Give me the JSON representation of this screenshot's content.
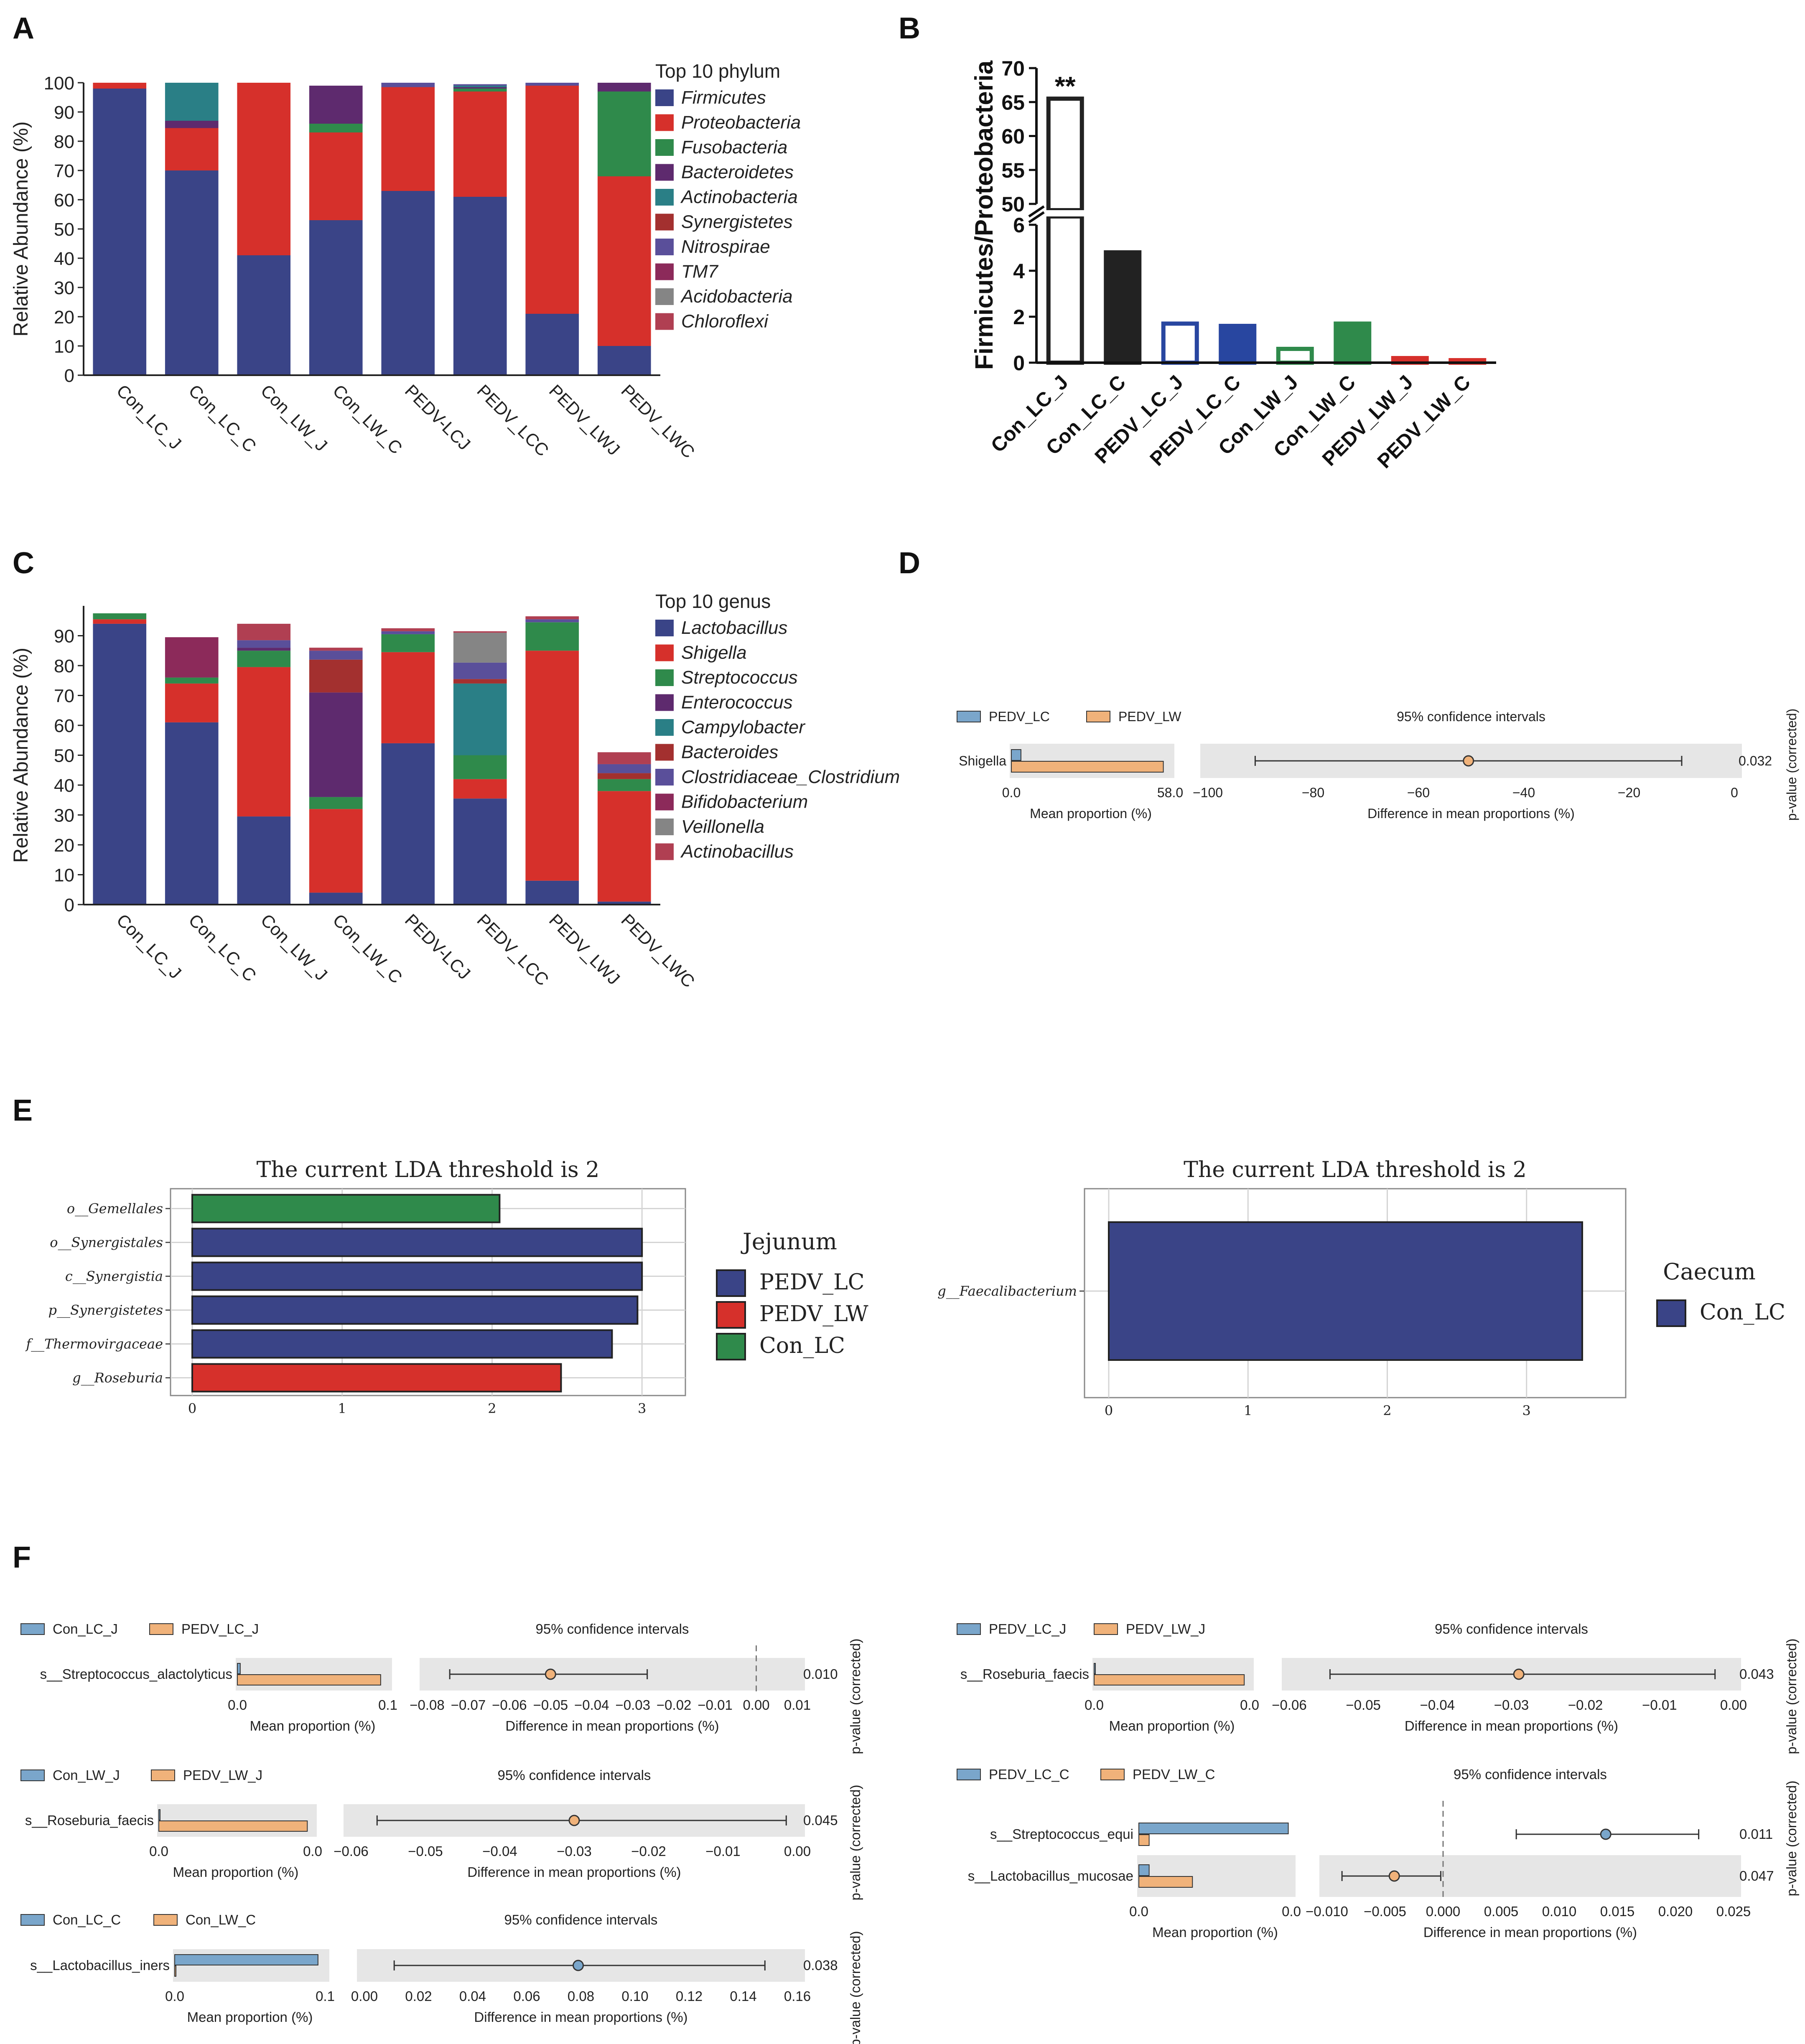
{
  "colors": {
    "navy": "#3a4487",
    "red": "#d6302b",
    "green": "#2f8a4b",
    "purple": "#5e2a6e",
    "teal": "#2a7f86",
    "darkred": "#a3302f",
    "slate": "#5a4f9a",
    "magenta": "#8c2a5a",
    "grey": "#858585",
    "rose": "#b03f52",
    "blue_pt": "#7aa6cb",
    "orange_pt": "#f0b27a"
  },
  "panels": {
    "A": "A",
    "B": "B",
    "C": "C",
    "D": "D",
    "E": "E",
    "F": "F"
  },
  "chart_data": [
    {
      "id": "A",
      "type": "bar",
      "stacked": true,
      "ylabel": "Relative Abundance (%)",
      "ylim": [
        0,
        100
      ],
      "yticks": [
        0,
        10,
        20,
        30,
        40,
        50,
        60,
        70,
        80,
        90,
        100
      ],
      "categories": [
        "Con_LC_J",
        "Con_LC_C",
        "Con_LW_J",
        "Con_LW_C",
        "PEDV-LCJ",
        "PEDV_LCC",
        "PEDV_LWJ",
        "PEDV_LWC"
      ],
      "legend_title": "Top 10 phylum",
      "series": [
        {
          "name": "Firmicutes",
          "color": "#3a4487",
          "values": [
            98,
            70,
            41,
            53,
            63,
            61,
            21,
            10
          ]
        },
        {
          "name": "Proteobacteria",
          "color": "#d6302b",
          "values": [
            2,
            14.5,
            59,
            30,
            35.5,
            36,
            78,
            58
          ]
        },
        {
          "name": "Fusobacteria",
          "color": "#2f8a4b",
          "values": [
            0,
            0,
            0,
            3,
            0,
            1,
            0,
            29
          ]
        },
        {
          "name": "Bacteroidetes",
          "color": "#5e2a6e",
          "values": [
            0,
            2.5,
            0,
            13,
            0,
            0.5,
            0,
            3
          ]
        },
        {
          "name": "Actinobacteria",
          "color": "#2a7f86",
          "values": [
            0,
            13,
            0,
            0,
            0,
            0.5,
            0,
            0
          ]
        },
        {
          "name": "Synergistetes",
          "color": "#a3302f",
          "values": [
            0,
            0,
            0,
            0,
            0,
            0,
            0,
            0
          ]
        },
        {
          "name": "Nitrospirae",
          "color": "#5a4f9a",
          "values": [
            0,
            0,
            0,
            0,
            1.5,
            0.5,
            1,
            0
          ]
        },
        {
          "name": "TM7",
          "color": "#8c2a5a",
          "values": [
            0,
            0,
            0,
            0,
            0,
            0,
            0,
            0
          ]
        },
        {
          "name": "Acidobacteria",
          "color": "#858585",
          "values": [
            0,
            0,
            0,
            0,
            0,
            0,
            0,
            0
          ]
        },
        {
          "name": "Chloroflexi",
          "color": "#b03f52",
          "values": [
            0,
            0,
            0,
            0,
            0,
            0,
            0,
            0
          ]
        }
      ]
    },
    {
      "id": "B",
      "type": "bar",
      "broken_axis": true,
      "ylabel": "Firmicutes/Proteobacteria",
      "yticks_lower": [
        0,
        2,
        4,
        6
      ],
      "yticks_upper": [
        50,
        55,
        60,
        65,
        70
      ],
      "categories": [
        "Con_LC_J",
        "Con_LC_C",
        "PEDV_LC_J",
        "PEDV_LC_C",
        "Con_LW_J",
        "Con_LW_C",
        "PEDV_LW_J",
        "PEDV_LW_C"
      ],
      "values": [
        65.5,
        4.8,
        1.7,
        1.6,
        0.6,
        1.7,
        0.2,
        0.1
      ],
      "fill": [
        "none",
        "#222222",
        "none",
        "#2846a0",
        "none",
        "#2f8a4b",
        "#d6302b",
        "#d6302b"
      ],
      "stroke": [
        "#222222",
        "#222222",
        "#2846a0",
        "#2846a0",
        "#2f8a4b",
        "#2f8a4b",
        "#d6302b",
        "#d6302b"
      ],
      "annotation": "**"
    },
    {
      "id": "C",
      "type": "bar",
      "stacked": true,
      "ylabel": "Relative Abundance (%)",
      "ylim": [
        0,
        100
      ],
      "yticks": [
        0,
        10,
        20,
        30,
        40,
        50,
        60,
        70,
        80,
        90
      ],
      "categories": [
        "Con_LC_J",
        "Con_LC_C",
        "Con_LW_J",
        "Con_LW_C",
        "PEDV-LCJ",
        "PEDV_LCC",
        "PEDV_LWJ",
        "PEDV_LWC"
      ],
      "legend_title": "Top 10 genus",
      "series": [
        {
          "name": "Lactobacillus",
          "color": "#3a4487",
          "values": [
            94,
            61,
            29.5,
            4,
            54,
            35.5,
            8,
            1
          ]
        },
        {
          "name": "Shigella",
          "color": "#d6302b",
          "values": [
            1.5,
            13,
            50,
            28,
            30.5,
            6.5,
            77,
            37
          ]
        },
        {
          "name": "Streptococcus",
          "color": "#2f8a4b",
          "values": [
            2,
            2,
            5.5,
            4,
            6,
            8,
            9.5,
            4
          ]
        },
        {
          "name": "Enterococcus",
          "color": "#5e2a6e",
          "values": [
            0,
            0,
            1,
            35,
            0,
            0,
            0,
            0
          ]
        },
        {
          "name": "Campylobacter",
          "color": "#2a7f86",
          "values": [
            0,
            0,
            0,
            0,
            0,
            24,
            0,
            0
          ]
        },
        {
          "name": "Bacteroides",
          "color": "#a3302f",
          "values": [
            0,
            0,
            0,
            11,
            0,
            1.5,
            0,
            2
          ]
        },
        {
          "name": "Clostridiaceae_Clostridium",
          "color": "#5a4f9a",
          "values": [
            0,
            0,
            2.5,
            3,
            1,
            5.5,
            1,
            3
          ]
        },
        {
          "name": "Bifidobacterium",
          "color": "#8c2a5a",
          "values": [
            0,
            13.5,
            0,
            0,
            0,
            0,
            0,
            0
          ]
        },
        {
          "name": "Veillonella",
          "color": "#858585",
          "values": [
            0,
            0,
            0,
            0,
            0,
            10,
            0,
            0
          ]
        },
        {
          "name": "Actinobacillus",
          "color": "#b03f52",
          "values": [
            0,
            0,
            5.5,
            1,
            1,
            0.5,
            1,
            4
          ]
        }
      ]
    },
    {
      "id": "D",
      "type": "scatter",
      "subtype": "extended_error_bar",
      "groups": [
        "PEDV_LC",
        "PEDV_LW"
      ],
      "ci_title": "95% confidence intervals",
      "mean_xticks": [
        "0.0",
        "58.0"
      ],
      "mean_xlabel": "Mean proportion (%)",
      "diff_xticks": [
        "−100",
        "−80",
        "−60",
        "−40",
        "−20",
        "0"
      ],
      "diff_xlabel": "Difference in mean proportions (%)",
      "pvalue_label": "p-value (corrected)",
      "rows": [
        {
          "name": "Shigella",
          "mean_a": 3.5,
          "mean_b": 55.5,
          "diff": -50.5,
          "ci": [
            -91,
            -10
          ],
          "p": "0.032"
        }
      ],
      "diff_range": [
        -100,
        0
      ],
      "mean_max": 58
    },
    {
      "id": "E1",
      "type": "bar",
      "orientation": "horizontal",
      "title": "The current LDA threshold is 2",
      "legend_title": "Jejunum",
      "legend": [
        {
          "name": "PEDV_LC",
          "color": "#3a4487"
        },
        {
          "name": "PEDV_LW",
          "color": "#d6302b"
        },
        {
          "name": "Con_LC",
          "color": "#2f8a4b"
        }
      ],
      "categories": [
        "o__Gemellales",
        "o__Synergistales",
        "c__Synergistia",
        "p__Synergistetes",
        "f__Thermovirgaceae",
        "g__Roseburia"
      ],
      "values": [
        2.05,
        3.0,
        3.0,
        2.97,
        2.8,
        2.46
      ],
      "colors": [
        "#2f8a4b",
        "#3a4487",
        "#3a4487",
        "#3a4487",
        "#3a4487",
        "#d6302b"
      ],
      "xticks": [
        "0",
        "1",
        "2",
        "3"
      ],
      "xlim": [
        0,
        3.15
      ]
    },
    {
      "id": "E2",
      "type": "bar",
      "orientation": "horizontal",
      "title": "The current LDA threshold is 2",
      "legend_title": "Caecum",
      "legend": [
        {
          "name": "Con_LC",
          "color": "#3a4487"
        }
      ],
      "categories": [
        "g__Faecalibacterium"
      ],
      "values": [
        3.4
      ],
      "colors": [
        "#3a4487"
      ],
      "xticks": [
        "0",
        "1",
        "2",
        "3"
      ],
      "xlim": [
        0,
        3.55
      ]
    },
    {
      "id": "F1",
      "type": "scatter",
      "subtype": "extended_error_bar",
      "groups": [
        "Con_LC_J",
        "PEDV_LC_J"
      ],
      "ci_title": "95% confidence intervals",
      "mean_xticks": [
        "0.0",
        "0.1"
      ],
      "mean_xlabel": "Mean proportion (%)",
      "diff_xticks": [
        "−0.08",
        "−0.07",
        "−0.06",
        "−0.05",
        "−0.04",
        "−0.03",
        "−0.02",
        "−0.01",
        "0.00",
        "0.01"
      ],
      "diff_xlabel": "Difference in mean proportions (%)",
      "pvalue_label": "p-value (corrected)",
      "rows": [
        {
          "name": "s__Streptococcus_alactolyticus",
          "mean_a": 0.002,
          "mean_b": 0.1,
          "diff": -0.05,
          "ci": [
            -0.0745,
            -0.0265
          ],
          "p": "0.010"
        }
      ],
      "diff_range": [
        -0.08,
        0.01
      ],
      "mean_max": 0.105
    },
    {
      "id": "F2",
      "type": "scatter",
      "subtype": "extended_error_bar",
      "groups": [
        "PEDV_LC_J",
        "PEDV_LW_J"
      ],
      "ci_title": "95% confidence intervals",
      "mean_xticks": [
        "0.0",
        "0.0"
      ],
      "mean_xlabel": "Mean proportion (%)",
      "diff_xticks": [
        "−0.06",
        "−0.05",
        "−0.04",
        "−0.03",
        "−0.02",
        "−0.01",
        "0.00"
      ],
      "diff_xlabel": "Difference in mean proportions (%)",
      "pvalue_label": "p-value (corrected)",
      "rows": [
        {
          "name": "s__Roseburia_faecis",
          "mean_a": 0.0,
          "mean_b": 0.028,
          "diff": -0.029,
          "ci": [
            -0.0545,
            -0.0025
          ],
          "p": "0.043"
        }
      ],
      "diff_range": [
        -0.06,
        0.0
      ],
      "mean_max": 0.029
    },
    {
      "id": "F3",
      "type": "scatter",
      "subtype": "extended_error_bar",
      "groups": [
        "Con_LW_J",
        "PEDV_LW_J"
      ],
      "ci_title": "95% confidence intervals",
      "mean_xticks": [
        "0.0",
        "0.0"
      ],
      "mean_xlabel": "Mean proportion (%)",
      "diff_xticks": [
        "−0.06",
        "−0.05",
        "−0.04",
        "−0.03",
        "−0.02",
        "−0.01",
        "0.00"
      ],
      "diff_xlabel": "Difference in mean proportions (%)",
      "pvalue_label": "p-value (corrected)",
      "rows": [
        {
          "name": "s__Roseburia_faecis",
          "mean_a": 0.0,
          "mean_b": 0.028,
          "diff": -0.03,
          "ci": [
            -0.0565,
            -0.0015
          ],
          "p": "0.045"
        }
      ],
      "diff_range": [
        -0.06,
        0.0
      ],
      "mean_max": 0.029
    },
    {
      "id": "F4",
      "type": "scatter",
      "subtype": "extended_error_bar",
      "groups": [
        "PEDV_LC_C",
        "PEDV_LW_C"
      ],
      "ci_title": "95% confidence intervals",
      "mean_xticks": [
        "0.0",
        "0.0"
      ],
      "mean_xlabel": "Mean proportion (%)",
      "diff_xticks": [
        "−0.010",
        "−0.005",
        "0.000",
        "0.005",
        "0.010",
        "0.015",
        "0.020",
        "0.025"
      ],
      "diff_xlabel": "Difference in mean proportions (%)",
      "pvalue_label": "p-value (corrected)",
      "rows": [
        {
          "name": "s__Streptococcus_equi",
          "mean_a": 0.0145,
          "mean_b": 0.001,
          "diff": 0.014,
          "ci": [
            0.0063,
            0.022
          ],
          "p": "0.011"
        },
        {
          "name": "s__Lactobacillus_mucosae",
          "mean_a": 0.001,
          "mean_b": 0.0052,
          "diff": -0.0042,
          "ci": [
            -0.0087,
            -0.0002
          ],
          "p": "0.047"
        }
      ],
      "diff_range": [
        -0.01,
        0.025
      ],
      "mean_max": 0.0148
    },
    {
      "id": "F5",
      "type": "scatter",
      "subtype": "extended_error_bar",
      "groups": [
        "Con_LC_C",
        "Con_LW_C"
      ],
      "ci_title": "95% confidence intervals",
      "mean_xticks": [
        "0.0",
        "0.1"
      ],
      "mean_xlabel": "Mean proportion (%)",
      "diff_xticks": [
        "0.00",
        "0.02",
        "0.04",
        "0.06",
        "0.08",
        "0.10",
        "0.12",
        "0.14",
        "0.16"
      ],
      "diff_xlabel": "Difference in mean proportions (%)",
      "pvalue_label": "p-value (corrected)",
      "rows": [
        {
          "name": "s__Lactobacillus_iners",
          "mean_a": 0.1,
          "mean_b": 0.0,
          "diff": 0.079,
          "ci": [
            0.011,
            0.148
          ],
          "p": "0.038"
        }
      ],
      "diff_range": [
        0.0,
        0.16
      ],
      "mean_max": 0.105
    }
  ]
}
